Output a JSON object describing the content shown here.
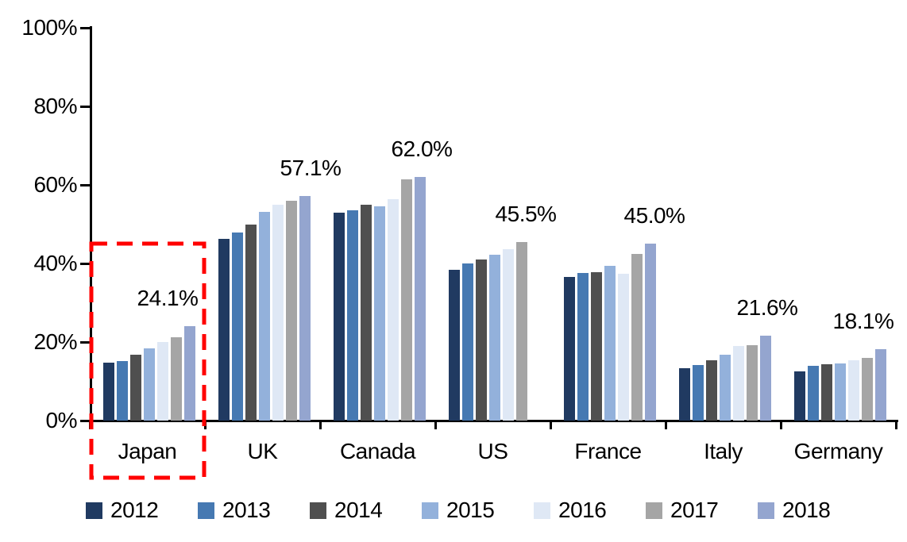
{
  "chart_data": {
    "type": "bar",
    "title": "",
    "xlabel": "",
    "ylabel": "",
    "categories": [
      "Japan",
      "UK",
      "Canada",
      "US",
      "France",
      "Italy",
      "Germany"
    ],
    "series": [
      {
        "name": "2012",
        "color": "#203A61",
        "values": [
          14.8,
          46.3,
          53.0,
          38.3,
          36.6,
          13.3,
          12.6
        ]
      },
      {
        "name": "2013",
        "color": "#4679B2",
        "values": [
          15.1,
          47.9,
          53.6,
          40.0,
          37.5,
          14.1,
          13.9
        ]
      },
      {
        "name": "2014",
        "color": "#4F4F4F",
        "values": [
          16.8,
          49.9,
          55.0,
          41.1,
          37.7,
          15.4,
          14.4
        ]
      },
      {
        "name": "2015",
        "color": "#93B1DB",
        "values": [
          18.3,
          53.2,
          54.6,
          42.2,
          39.3,
          16.8,
          14.6
        ]
      },
      {
        "name": "2016",
        "color": "#DFE8F5",
        "values": [
          19.9,
          54.9,
          56.3,
          43.6,
          37.4,
          18.9,
          15.3
        ]
      },
      {
        "name": "2017",
        "color": "#A5A5A5",
        "values": [
          21.2,
          55.9,
          61.4,
          45.5,
          42.4,
          19.2,
          16.0
        ]
      },
      {
        "name": "2018",
        "color": "#94A5CF",
        "values": [
          24.1,
          57.1,
          62.0,
          null,
          45.0,
          21.6,
          18.1
        ]
      }
    ],
    "annotations": [
      {
        "category": "Japan",
        "text": "24.1%"
      },
      {
        "category": "UK",
        "text": "57.1%"
      },
      {
        "category": "Canada",
        "text": "62.0%"
      },
      {
        "category": "US",
        "text": "45.5%"
      },
      {
        "category": "France",
        "text": "45.0%"
      },
      {
        "category": "Italy",
        "text": "21.6%"
      },
      {
        "category": "Germany",
        "text": "18.1%"
      }
    ],
    "y_axis": {
      "tick_labels": [
        "0%",
        "20%",
        "40%",
        "60%",
        "80%",
        "100%"
      ],
      "tick_values": [
        0,
        20,
        40,
        60,
        80,
        100
      ],
      "min": 0,
      "max": 100
    },
    "legend": [
      "2012",
      "2013",
      "2014",
      "2015",
      "2016",
      "2017",
      "2018"
    ],
    "legend_position": "bottom",
    "grid": false,
    "highlight": {
      "category": "Japan",
      "color": "#FF0000",
      "style": "dashed-box"
    },
    "text_color": "#000000",
    "axis_color": "#000000"
  }
}
